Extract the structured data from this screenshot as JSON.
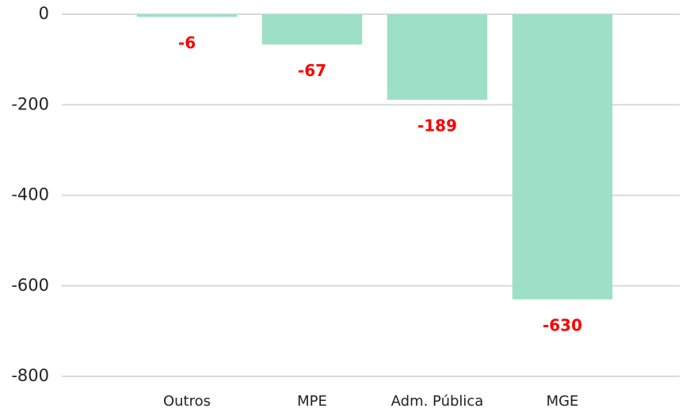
{
  "chart_data": {
    "type": "bar",
    "categories": [
      "Outros",
      "MPE",
      "Adm. Pública",
      "MGE"
    ],
    "values": [
      -6,
      -67,
      -189,
      -630
    ],
    "color": "#9de0c6",
    "label_color": "#ff0000",
    "ylim": [
      -800,
      0
    ],
    "yticks": [
      0,
      -200,
      -400,
      -600,
      -800
    ],
    "grid": true
  }
}
